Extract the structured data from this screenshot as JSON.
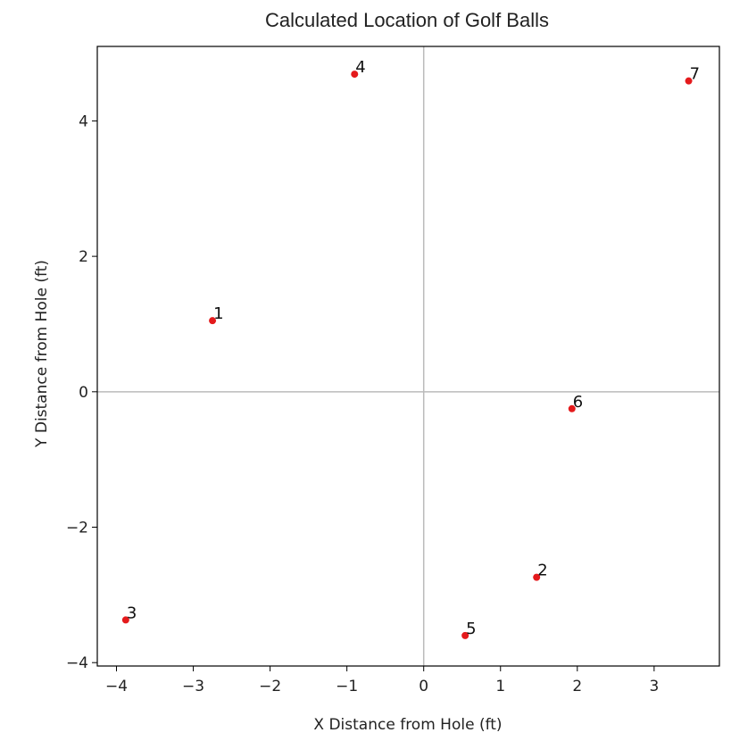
{
  "chart_data": {
    "type": "scatter",
    "title": "Calculated Location of Golf Balls",
    "xlabel": "X Distance from Hole (ft)",
    "ylabel": "Y Distance from Hole (ft)",
    "xlim": [
      -4.25,
      3.85
    ],
    "ylim": [
      -4.05,
      5.1
    ],
    "xticks": [
      -4,
      -3,
      -2,
      -1,
      0,
      1,
      2,
      3
    ],
    "yticks": [
      -4,
      -2,
      0,
      2,
      4
    ],
    "grid": false,
    "reference_lines": {
      "x": 0,
      "y": 0,
      "color": "#bbbbbb"
    },
    "marker_color": "#e41a1c",
    "points": [
      {
        "label": "1",
        "x": -2.75,
        "y": 1.05
      },
      {
        "label": "2",
        "x": 1.47,
        "y": -2.74
      },
      {
        "label": "3",
        "x": -3.88,
        "y": -3.37
      },
      {
        "label": "4",
        "x": -0.9,
        "y": 4.69
      },
      {
        "label": "5",
        "x": 0.54,
        "y": -3.6
      },
      {
        "label": "6",
        "x": 1.93,
        "y": -0.25
      },
      {
        "label": "7",
        "x": 3.45,
        "y": 4.59
      }
    ]
  }
}
